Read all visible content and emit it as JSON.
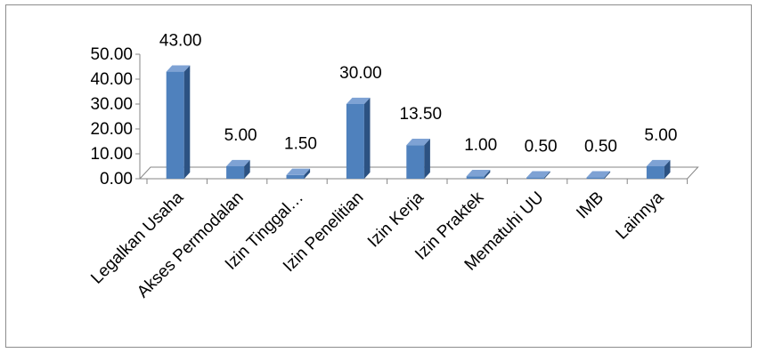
{
  "chart_data": {
    "type": "bar",
    "style": "3d-column",
    "title": "",
    "xlabel": "",
    "ylabel": "",
    "categories": [
      "Legalkan Usaha",
      "Akses Permodalan",
      "Izin Tinggal…",
      "Izin Penelitian",
      "Izin Kerja",
      "Izin Praktek",
      "Mematuhi UU",
      "IMB",
      "Lainnya"
    ],
    "values": [
      43.0,
      5.0,
      1.5,
      30.0,
      13.5,
      1.0,
      0.5,
      0.5,
      5.0
    ],
    "value_labels": [
      "43.00",
      "5.00",
      "1.50",
      "30.00",
      "13.50",
      "1.00",
      "0.50",
      "0.50",
      "5.00"
    ],
    "yticks": [
      "0.00",
      "10.00",
      "20.00",
      "30.00",
      "40.00",
      "50.00"
    ],
    "ylim": [
      0,
      50
    ],
    "grid": false,
    "legend": "none",
    "colors": {
      "bar_front": "#4f81bd",
      "bar_side": "#2c5282",
      "bar_top": "#7ea2d4",
      "axis": "#868686",
      "frame": "#8c8c8c"
    }
  }
}
